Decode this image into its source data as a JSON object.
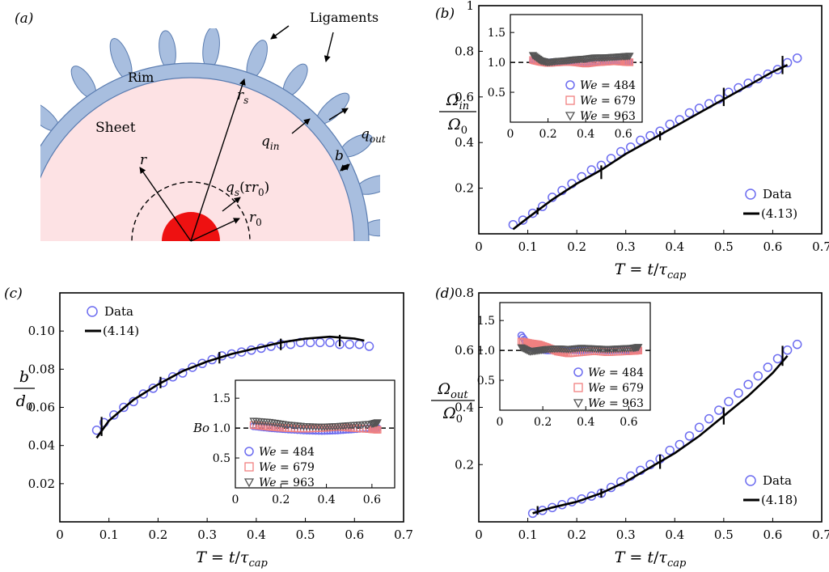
{
  "figure": {
    "panel_labels": [
      "(a)",
      "(b)",
      "(c)",
      "(d)"
    ]
  },
  "schematic": {
    "labels": {
      "ligaments": "Ligaments",
      "rim": "Rim",
      "sheet": "Sheet",
      "r": "r",
      "r_s": "r",
      "r_s_sub": "s",
      "q_in": "q",
      "q_in_sub": "in",
      "q_out": "q",
      "q_out_sub": "out",
      "b": "b",
      "q_s": "q",
      "q_s_sub": "s",
      "q_s_arg": "(r",
      "q_s_arg_sub": "0",
      "q_s_close": ")",
      "r0": "r",
      "r0_sub": "0"
    },
    "colors": {
      "sheet": "#fde2e4",
      "rim": "#a8bedf",
      "rim_stroke": "#5a7cb0",
      "core": "#ee1111"
    }
  },
  "chart_data": [
    {
      "panel": "(b)",
      "type": "scatter",
      "xlabel": "T = t/τcap",
      "ylabel": "Ωin/Ω0",
      "xlim": [
        0.0,
        0.7
      ],
      "ylim": [
        0.0,
        1.0
      ],
      "xticks": [
        0.1,
        0.2,
        0.3,
        0.4,
        0.5,
        0.6,
        0.7
      ],
      "yticks": [
        0.2,
        0.4,
        0.6,
        0.8,
        1.0
      ],
      "x0_label": "0",
      "legend": {
        "position": "bottom-right",
        "entries": [
          "Data",
          "(4.13)"
        ]
      },
      "series": [
        {
          "name": "Data",
          "marker": "circle",
          "color": "#6c6cf0",
          "x": [
            0.07,
            0.09,
            0.11,
            0.13,
            0.15,
            0.17,
            0.19,
            0.21,
            0.23,
            0.25,
            0.27,
            0.29,
            0.31,
            0.33,
            0.35,
            0.37,
            0.39,
            0.41,
            0.43,
            0.45,
            0.47,
            0.49,
            0.51,
            0.53,
            0.55,
            0.57,
            0.59,
            0.61,
            0.63,
            0.65
          ],
          "y": [
            0.04,
            0.06,
            0.09,
            0.12,
            0.16,
            0.19,
            0.22,
            0.25,
            0.28,
            0.3,
            0.33,
            0.36,
            0.38,
            0.41,
            0.43,
            0.45,
            0.48,
            0.5,
            0.53,
            0.55,
            0.57,
            0.59,
            0.62,
            0.64,
            0.66,
            0.68,
            0.7,
            0.72,
            0.75,
            0.77
          ]
        },
        {
          "name": "(4.13)",
          "type": "line",
          "color": "#000000",
          "x": [
            0.07,
            0.1,
            0.15,
            0.2,
            0.25,
            0.3,
            0.35,
            0.4,
            0.45,
            0.5,
            0.55,
            0.6,
            0.63
          ],
          "y": [
            0.02,
            0.07,
            0.15,
            0.22,
            0.28,
            0.35,
            0.41,
            0.47,
            0.53,
            0.59,
            0.65,
            0.71,
            0.74
          ],
          "errorbars": [
            {
              "x": 0.12,
              "y": 0.1,
              "err": 0.015
            },
            {
              "x": 0.25,
              "y": 0.27,
              "err": 0.03
            },
            {
              "x": 0.37,
              "y": 0.43,
              "err": 0.02
            },
            {
              "x": 0.5,
              "y": 0.6,
              "err": 0.04
            },
            {
              "x": 0.62,
              "y": 0.74,
              "err": 0.04
            }
          ]
        }
      ],
      "inset": {
        "xlim": [
          0.0,
          0.7
        ],
        "ylim": [
          0.0,
          1.8
        ],
        "xticks": [
          0.2,
          0.4,
          0.6
        ],
        "yticks": [
          0.5,
          1.0,
          1.5
        ],
        "x0_label": "0",
        "refline": 1.0,
        "legend": [
          "We = 484",
          "We = 679",
          "We = 963"
        ],
        "series": [
          {
            "name": "We = 484",
            "marker": "circle",
            "color": "#6c6cf0",
            "x": [
              0.12,
              0.16,
              0.2,
              0.25,
              0.3,
              0.35,
              0.4,
              0.45,
              0.5,
              0.55,
              0.6,
              0.64
            ],
            "y": [
              1.03,
              1.02,
              1.0,
              1.01,
              1.02,
              1.0,
              0.99,
              1.0,
              1.02,
              1.03,
              1.02,
              1.01
            ]
          },
          {
            "name": "We = 679",
            "marker": "square",
            "color": "#f08080",
            "x": [
              0.12,
              0.16,
              0.2,
              0.25,
              0.3,
              0.35,
              0.4,
              0.45,
              0.5,
              0.55,
              0.6,
              0.64
            ],
            "y": [
              1.04,
              1.01,
              0.99,
              1.0,
              1.01,
              1.0,
              0.98,
              1.0,
              1.01,
              1.02,
              1.01,
              1.0
            ]
          },
          {
            "name": "We = 963",
            "marker": "triangle",
            "color": "#555555",
            "x": [
              0.12,
              0.16,
              0.2,
              0.25,
              0.3,
              0.35,
              0.4,
              0.45,
              0.5,
              0.55,
              0.6,
              0.64
            ],
            "y": [
              1.12,
              1.03,
              1.0,
              1.02,
              1.03,
              1.05,
              1.06,
              1.08,
              1.08,
              1.09,
              1.1,
              1.11
            ]
          }
        ]
      }
    },
    {
      "panel": "(c)",
      "type": "scatter",
      "xlabel": "T = t/τcap",
      "ylabel": "b/d0",
      "xlim": [
        0.0,
        0.7
      ],
      "ylim": [
        0.0,
        0.12
      ],
      "xticks": [
        0.1,
        0.2,
        0.3,
        0.4,
        0.5,
        0.6,
        0.7
      ],
      "yticks": [
        0.02,
        0.04,
        0.06,
        0.08,
        0.1
      ],
      "x0_label": "0",
      "legend": {
        "position": "top-left",
        "entries": [
          "Data",
          "(4.14)"
        ]
      },
      "series": [
        {
          "name": "Data",
          "marker": "circle",
          "color": "#6c6cf0",
          "x": [
            0.075,
            0.09,
            0.11,
            0.13,
            0.15,
            0.17,
            0.19,
            0.21,
            0.23,
            0.25,
            0.27,
            0.29,
            0.31,
            0.33,
            0.35,
            0.37,
            0.39,
            0.41,
            0.43,
            0.45,
            0.47,
            0.49,
            0.51,
            0.53,
            0.55,
            0.57,
            0.59,
            0.61,
            0.63
          ],
          "y": [
            0.048,
            0.052,
            0.056,
            0.06,
            0.063,
            0.067,
            0.07,
            0.073,
            0.076,
            0.078,
            0.081,
            0.083,
            0.085,
            0.087,
            0.088,
            0.089,
            0.09,
            0.091,
            0.092,
            0.093,
            0.093,
            0.094,
            0.094,
            0.094,
            0.094,
            0.093,
            0.093,
            0.093,
            0.092
          ]
        },
        {
          "name": "(4.14)",
          "type": "line",
          "color": "#000000",
          "x": [
            0.075,
            0.1,
            0.15,
            0.2,
            0.25,
            0.3,
            0.35,
            0.4,
            0.45,
            0.5,
            0.55,
            0.6,
            0.62
          ],
          "y": [
            0.044,
            0.053,
            0.064,
            0.072,
            0.079,
            0.084,
            0.088,
            0.091,
            0.094,
            0.096,
            0.097,
            0.096,
            0.095
          ],
          "errorbars": [
            {
              "x": 0.085,
              "y": 0.05,
              "err": 0.005
            },
            {
              "x": 0.205,
              "y": 0.073,
              "err": 0.003
            },
            {
              "x": 0.325,
              "y": 0.086,
              "err": 0.003
            },
            {
              "x": 0.45,
              "y": 0.093,
              "err": 0.003
            },
            {
              "x": 0.57,
              "y": 0.095,
              "err": 0.003
            }
          ]
        }
      ],
      "inset": {
        "xlim": [
          0.0,
          0.7
        ],
        "ylim": [
          0.0,
          1.8
        ],
        "xticks": [
          0.2,
          0.4,
          0.6
        ],
        "yticks": [
          0.5,
          1.0,
          1.5
        ],
        "x0_label": "0",
        "ylabel": "Bo",
        "refline": 1.0,
        "legend": [
          "We = 484",
          "We = 679",
          "We = 963"
        ],
        "series": [
          {
            "name": "We = 484",
            "marker": "circle",
            "color": "#6c6cf0",
            "x": [
              0.08,
              0.15,
              0.22,
              0.3,
              0.38,
              0.45,
              0.52,
              0.6,
              0.63
            ],
            "y": [
              1.03,
              1.0,
              0.98,
              0.96,
              0.95,
              0.96,
              0.98,
              1.0,
              1.0
            ]
          },
          {
            "name": "We = 679",
            "marker": "square",
            "color": "#f08080",
            "x": [
              0.08,
              0.15,
              0.22,
              0.3,
              0.38,
              0.45,
              0.52,
              0.6,
              0.63
            ],
            "y": [
              1.05,
              1.02,
              1.0,
              0.99,
              1.0,
              1.02,
              1.0,
              0.98,
              0.97
            ]
          },
          {
            "name": "We = 963",
            "marker": "triangle",
            "color": "#555555",
            "x": [
              0.08,
              0.15,
              0.22,
              0.3,
              0.38,
              0.45,
              0.52,
              0.6,
              0.63
            ],
            "y": [
              1.12,
              1.1,
              1.06,
              1.03,
              1.02,
              1.03,
              1.05,
              1.07,
              1.1
            ]
          }
        ]
      }
    },
    {
      "panel": "(d)",
      "type": "scatter",
      "xlabel": "T = t/τcap",
      "ylabel": "Ωout/Ω0",
      "xlim": [
        0.0,
        0.7
      ],
      "ylim": [
        0.0,
        0.8
      ],
      "xticks": [
        0.1,
        0.2,
        0.3,
        0.4,
        0.5,
        0.6,
        0.7
      ],
      "yticks": [
        0.2,
        0.4,
        0.6,
        0.8
      ],
      "x0_label": "0",
      "legend": {
        "position": "bottom-right",
        "entries": [
          "Data",
          "(4.18)"
        ]
      },
      "series": [
        {
          "name": "Data",
          "marker": "circle",
          "color": "#6c6cf0",
          "x": [
            0.11,
            0.13,
            0.15,
            0.17,
            0.19,
            0.21,
            0.23,
            0.25,
            0.27,
            0.29,
            0.31,
            0.33,
            0.35,
            0.37,
            0.39,
            0.41,
            0.43,
            0.45,
            0.47,
            0.49,
            0.51,
            0.53,
            0.55,
            0.57,
            0.59,
            0.61,
            0.63,
            0.65
          ],
          "y": [
            0.03,
            0.04,
            0.05,
            0.06,
            0.07,
            0.08,
            0.09,
            0.1,
            0.12,
            0.14,
            0.16,
            0.18,
            0.2,
            0.22,
            0.25,
            0.27,
            0.3,
            0.33,
            0.36,
            0.39,
            0.42,
            0.45,
            0.48,
            0.51,
            0.54,
            0.57,
            0.6,
            0.62
          ]
        },
        {
          "name": "(4.18)",
          "type": "line",
          "color": "#000000",
          "x": [
            0.11,
            0.15,
            0.2,
            0.25,
            0.3,
            0.35,
            0.4,
            0.45,
            0.5,
            0.55,
            0.6,
            0.63
          ],
          "y": [
            0.03,
            0.05,
            0.07,
            0.1,
            0.14,
            0.19,
            0.24,
            0.3,
            0.37,
            0.44,
            0.52,
            0.58
          ],
          "errorbars": [
            {
              "x": 0.12,
              "y": 0.04,
              "err": 0.015
            },
            {
              "x": 0.25,
              "y": 0.1,
              "err": 0.015
            },
            {
              "x": 0.37,
              "y": 0.21,
              "err": 0.025
            },
            {
              "x": 0.5,
              "y": 0.37,
              "err": 0.03
            },
            {
              "x": 0.62,
              "y": 0.58,
              "err": 0.035
            }
          ]
        }
      ],
      "inset": {
        "xlim": [
          0.0,
          0.7
        ],
        "ylim": [
          0.0,
          1.8
        ],
        "xticks": [
          0.2,
          0.4,
          0.6
        ],
        "yticks": [
          0.5,
          1.0,
          1.5
        ],
        "x0_label": "0",
        "refline": 1.0,
        "legend": [
          "We = 484",
          "We = 679",
          "We = 963"
        ],
        "series": [
          {
            "name": "We = 484",
            "marker": "circle",
            "color": "#6c6cf0",
            "x": [
              0.1,
              0.14,
              0.18,
              0.22,
              0.27,
              0.32,
              0.38,
              0.44,
              0.5,
              0.56,
              0.62,
              0.65
            ],
            "y": [
              1.25,
              1.05,
              1.02,
              1.0,
              1.0,
              1.01,
              1.0,
              1.02,
              1.0,
              1.01,
              1.0,
              1.02
            ]
          },
          {
            "name": "We = 679",
            "marker": "square",
            "color": "#f08080",
            "x": [
              0.1,
              0.14,
              0.18,
              0.22,
              0.27,
              0.32,
              0.38,
              0.44,
              0.5,
              0.56,
              0.62,
              0.65
            ],
            "y": [
              1.15,
              1.12,
              1.1,
              1.05,
              0.98,
              0.95,
              0.97,
              0.99,
              0.97,
              0.98,
              0.99,
              1.0
            ]
          },
          {
            "name": "We = 963",
            "marker": "triangle",
            "color": "#555555",
            "x": [
              0.1,
              0.14,
              0.18,
              0.22,
              0.27,
              0.32,
              0.38,
              0.44,
              0.5,
              0.56,
              0.62,
              0.65
            ],
            "y": [
              1.05,
              0.98,
              1.0,
              1.02,
              1.03,
              1.02,
              1.04,
              1.03,
              1.02,
              1.03,
              1.04,
              1.06
            ]
          }
        ]
      }
    }
  ]
}
